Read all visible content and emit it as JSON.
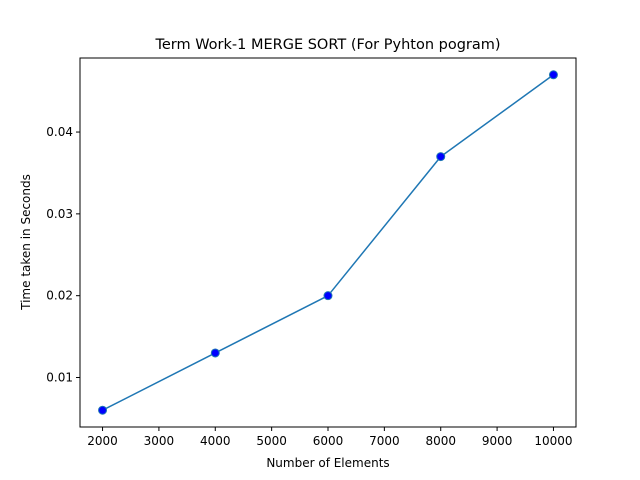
{
  "chart_data": {
    "type": "line",
    "title": "Term Work-1 MERGE SORT (For Pyhton pogram)",
    "xlabel": "Number of Elements",
    "ylabel": "Time taken in Seconds",
    "x": [
      2000,
      4000,
      6000,
      8000,
      10000
    ],
    "series": [
      {
        "values": [
          0.006,
          0.013,
          0.02,
          0.037,
          0.047
        ],
        "color": "#1f77b4",
        "marker_color": "#0000ff"
      }
    ],
    "xlim": [
      1600,
      10400
    ],
    "ylim": [
      0.00395,
      0.04905
    ],
    "xticks": [
      2000,
      3000,
      4000,
      5000,
      6000,
      7000,
      8000,
      9000,
      10000
    ],
    "xtick_labels": [
      "2000",
      "3000",
      "4000",
      "5000",
      "6000",
      "7000",
      "8000",
      "9000",
      "10000"
    ],
    "yticks": [
      0.01,
      0.02,
      0.03,
      0.04
    ],
    "ytick_labels": [
      "0.01",
      "0.02",
      "0.03",
      "0.04"
    ],
    "grid": false
  }
}
